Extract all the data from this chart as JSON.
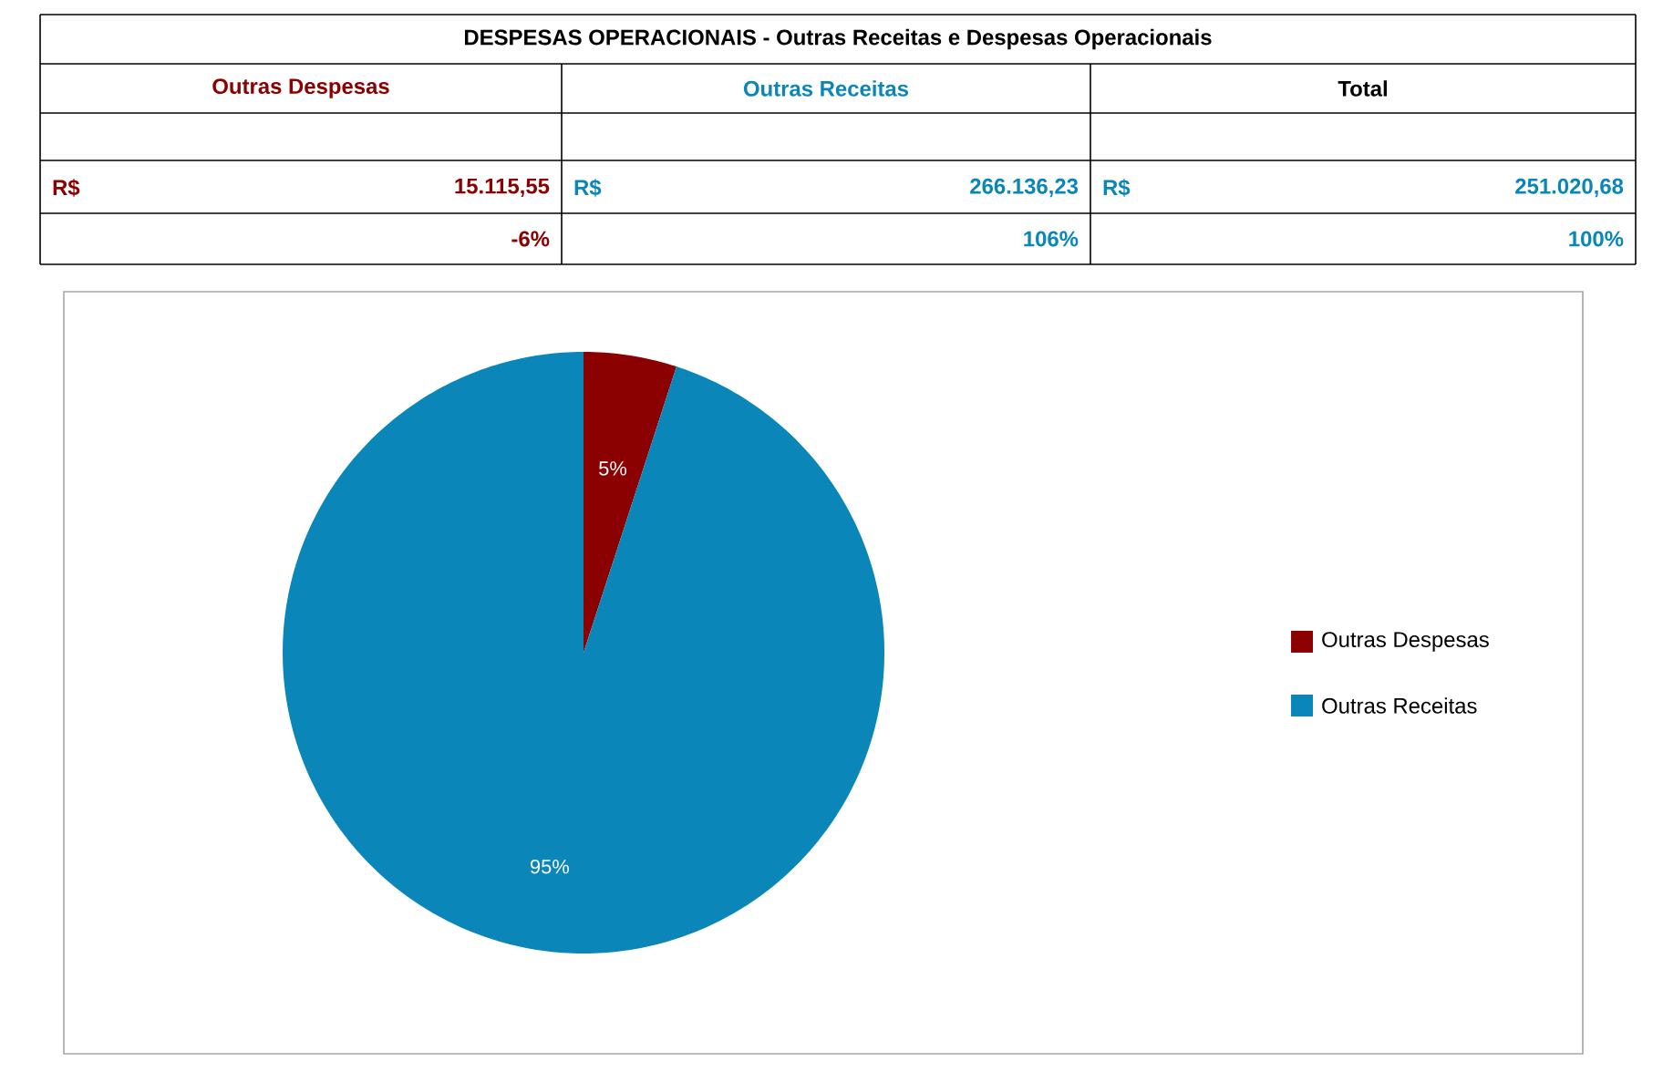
{
  "chart_data": {
    "type": "pie",
    "title": "DESPESAS OPERACIONAIS - Outras Receitas e Despesas Operacionais",
    "categories": [
      "Outras Despesas",
      "Outras Receitas"
    ],
    "values": [
      5,
      95
    ],
    "value_labels": [
      "5%",
      "95%"
    ],
    "colors": [
      "#8b0000",
      "#0a86b8"
    ],
    "legend": "right",
    "annotations": [
      "Outras Despesas",
      "Outras Receitas",
      "Total",
      "R$",
      "15.115,55",
      "R$",
      "266.136,23",
      "R$",
      "251.020,68",
      "-6%",
      "106%",
      "100%"
    ]
  }
}
